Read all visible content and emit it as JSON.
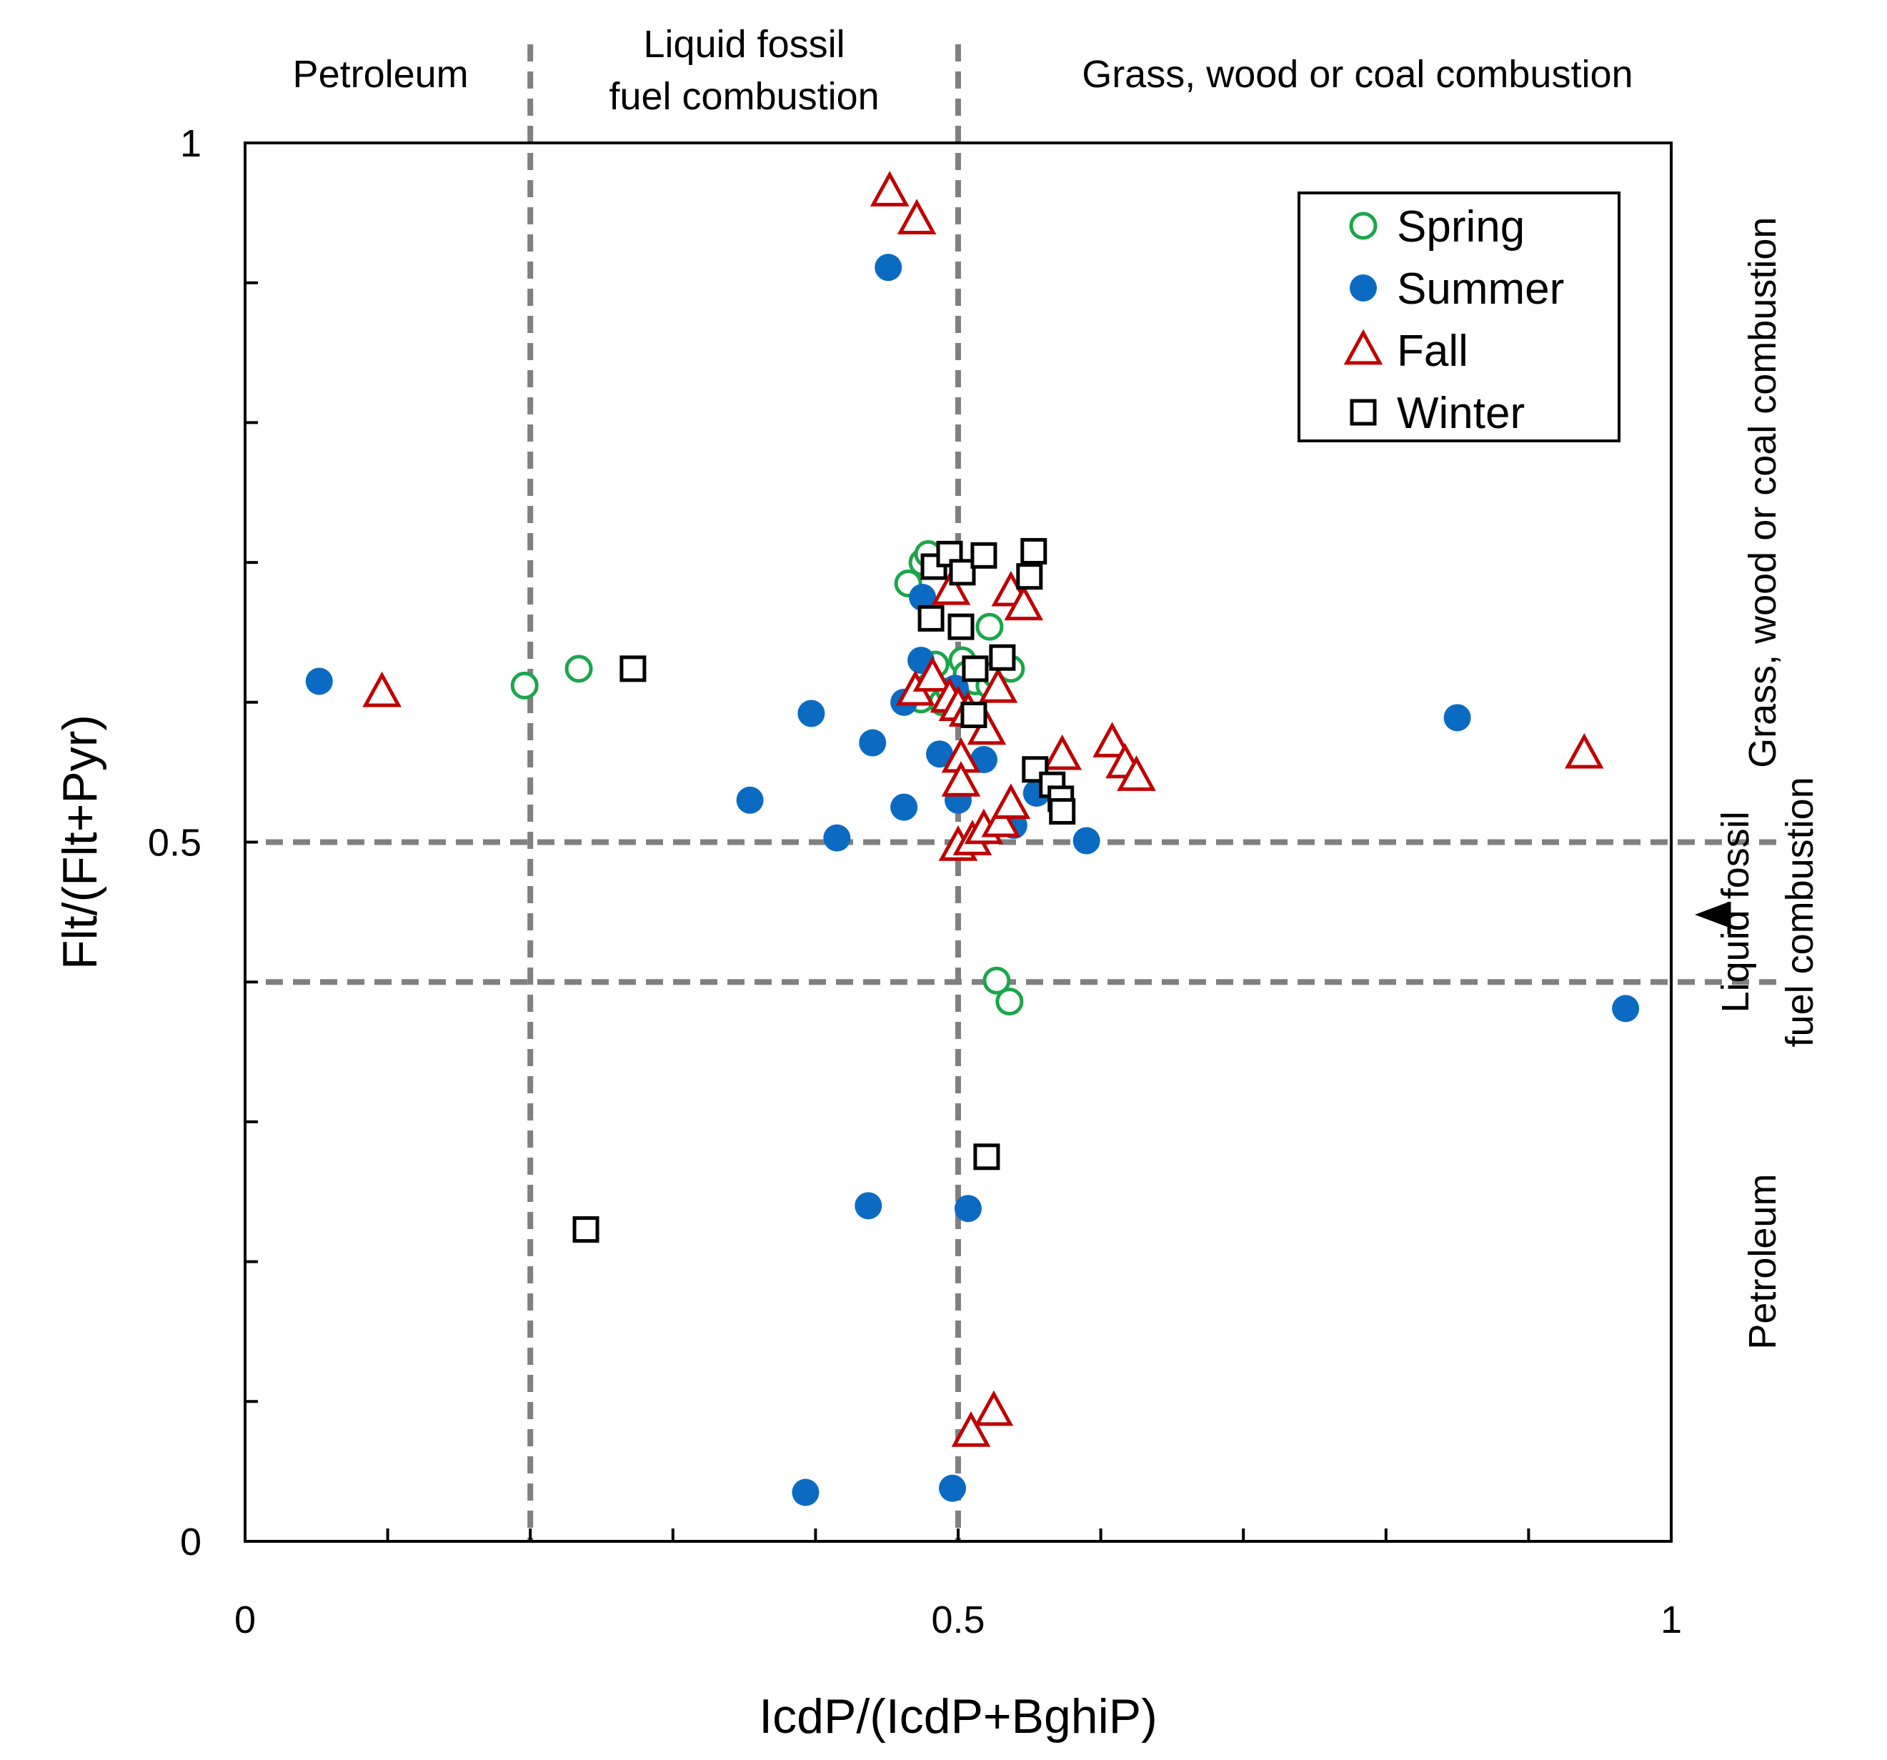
{
  "chart_data": {
    "type": "scatter",
    "xlabel": "IcdP/(IcdP+BghiP)",
    "ylabel": "Flt/(Flt+Pyr)",
    "xlim": [
      0,
      1
    ],
    "ylim": [
      0,
      1
    ],
    "x_tick_labels": [
      "0",
      "0.5",
      "1"
    ],
    "y_tick_labels": [
      "0",
      "0.5",
      "1"
    ],
    "x_minor_ticks": [
      0.1,
      0.2,
      0.3,
      0.4,
      0.5,
      0.6,
      0.7,
      0.8,
      0.9
    ],
    "y_minor_ticks": [
      0.1,
      0.2,
      0.3,
      0.4,
      0.5,
      0.6,
      0.7,
      0.8,
      0.9
    ],
    "grid": false,
    "legend_position": "top-right",
    "threshold_lines": {
      "x": [
        0.2,
        0.5
      ],
      "y": [
        0.4,
        0.5
      ]
    },
    "region_labels": {
      "top": [
        {
          "lines": [
            "Petroleum"
          ],
          "x": 0.095
        },
        {
          "lines": [
            "Liquid  fossil",
            "fuel combustion"
          ],
          "x": 0.35
        },
        {
          "lines": [
            "Grass,  wood or coal combustion"
          ],
          "x": 0.78
        }
      ],
      "right": [
        {
          "lines": [
            "Grass,  wood or coal combustion"
          ],
          "y": 0.75
        },
        {
          "lines": [
            "Liquid fossil",
            "fuel combustion"
          ],
          "y": 0.45
        },
        {
          "lines": [
            "Petroleum"
          ],
          "y": 0.2
        }
      ]
    },
    "series": [
      {
        "name": "Spring",
        "marker": "open-circle",
        "color": "#1aa64a",
        "points": [
          [
            0.196,
            0.612
          ],
          [
            0.234,
            0.624
          ],
          [
            0.465,
            0.685
          ],
          [
            0.475,
            0.7
          ],
          [
            0.479,
            0.706
          ],
          [
            0.474,
            0.602
          ],
          [
            0.48,
            0.612
          ],
          [
            0.484,
            0.627
          ],
          [
            0.489,
            0.6
          ],
          [
            0.494,
            0.608
          ],
          [
            0.503,
            0.63
          ],
          [
            0.506,
            0.62
          ],
          [
            0.512,
            0.615
          ],
          [
            0.522,
            0.612
          ],
          [
            0.526,
            0.62
          ],
          [
            0.537,
            0.624
          ],
          [
            0.522,
            0.654
          ],
          [
            0.527,
            0.401
          ],
          [
            0.536,
            0.386
          ]
        ]
      },
      {
        "name": "Summer",
        "marker": "filled-circle",
        "color": "#0b6bc2",
        "points": [
          [
            0.052,
            0.615
          ],
          [
            0.397,
            0.592
          ],
          [
            0.354,
            0.53
          ],
          [
            0.415,
            0.503
          ],
          [
            0.44,
            0.571
          ],
          [
            0.462,
            0.525
          ],
          [
            0.462,
            0.6
          ],
          [
            0.474,
            0.63
          ],
          [
            0.475,
            0.675
          ],
          [
            0.487,
            0.563
          ],
          [
            0.498,
            0.61
          ],
          [
            0.5,
            0.53
          ],
          [
            0.518,
            0.559
          ],
          [
            0.539,
            0.512
          ],
          [
            0.555,
            0.535
          ],
          [
            0.59,
            0.501
          ],
          [
            0.451,
            0.911
          ],
          [
            0.437,
            0.24
          ],
          [
            0.507,
            0.238
          ],
          [
            0.393,
            0.035
          ],
          [
            0.496,
            0.038
          ],
          [
            0.85,
            0.589
          ],
          [
            0.968,
            0.381
          ]
        ]
      },
      {
        "name": "Fall",
        "marker": "open-triangle",
        "color": "#c00000",
        "points": [
          [
            0.452,
            0.965
          ],
          [
            0.471,
            0.945
          ],
          [
            0.096,
            0.607
          ],
          [
            0.47,
            0.608
          ],
          [
            0.482,
            0.618
          ],
          [
            0.494,
            0.603
          ],
          [
            0.5,
            0.597
          ],
          [
            0.495,
            0.68
          ],
          [
            0.507,
            0.593
          ],
          [
            0.52,
            0.58
          ],
          [
            0.528,
            0.61
          ],
          [
            0.537,
            0.679
          ],
          [
            0.546,
            0.669
          ],
          [
            0.502,
            0.56
          ],
          [
            0.502,
            0.543
          ],
          [
            0.5,
            0.497
          ],
          [
            0.51,
            0.501
          ],
          [
            0.518,
            0.509
          ],
          [
            0.53,
            0.514
          ],
          [
            0.537,
            0.527
          ],
          [
            0.573,
            0.562
          ],
          [
            0.608,
            0.571
          ],
          [
            0.617,
            0.556
          ],
          [
            0.625,
            0.547
          ],
          [
            0.939,
            0.563
          ],
          [
            0.509,
            0.078
          ],
          [
            0.525,
            0.093
          ]
        ]
      },
      {
        "name": "Winter",
        "marker": "open-square",
        "color": "#000000",
        "points": [
          [
            0.272,
            0.624
          ],
          [
            0.239,
            0.223
          ],
          [
            0.483,
            0.697
          ],
          [
            0.494,
            0.706
          ],
          [
            0.503,
            0.693
          ],
          [
            0.518,
            0.705
          ],
          [
            0.553,
            0.708
          ],
          [
            0.55,
            0.69
          ],
          [
            0.481,
            0.66
          ],
          [
            0.502,
            0.654
          ],
          [
            0.512,
            0.624
          ],
          [
            0.531,
            0.632
          ],
          [
            0.511,
            0.591
          ],
          [
            0.554,
            0.552
          ],
          [
            0.566,
            0.541
          ],
          [
            0.572,
            0.531
          ],
          [
            0.573,
            0.522
          ],
          [
            0.52,
            0.275
          ]
        ]
      }
    ]
  }
}
